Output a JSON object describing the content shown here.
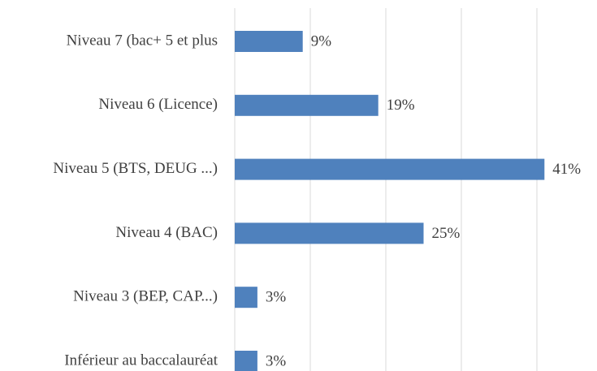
{
  "chart_data": {
    "type": "hbar",
    "categories": [
      "Niveau 7 (bac+ 5 et plus",
      "Niveau 6 (Licence)",
      "Niveau 5 (BTS, DEUG ...)",
      "Niveau 4 (BAC)",
      "Niveau 3 (BEP, CAP...)",
      "Inférieur au baccalauréat"
    ],
    "values": [
      9,
      19,
      41,
      25,
      3,
      3
    ],
    "value_labels": [
      "9%",
      "19%",
      "41%",
      "25%",
      "3%",
      "3%"
    ],
    "color": "#4f81bd",
    "xlim": [
      0,
      45
    ],
    "xticks": [
      0,
      10,
      20,
      30,
      40
    ],
    "grid": true
  }
}
